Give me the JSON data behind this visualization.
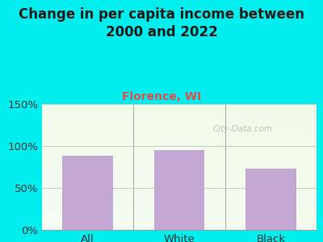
{
  "categories": [
    "All",
    "White",
    "Black"
  ],
  "values": [
    88,
    95,
    73
  ],
  "bar_color": "#C4A8D4",
  "title": "Change in per capita income between\n2000 and 2022",
  "subtitle": "Florence, WI",
  "subtitle_color": "#E05050",
  "title_color": "#1a1a1a",
  "background_color": "#00EEEE",
  "ylim": [
    0,
    150
  ],
  "yticks": [
    0,
    50,
    100,
    150
  ],
  "ytick_labels": [
    "0%",
    "50%",
    "100%",
    "150%"
  ],
  "grid_color": "#ccccbb",
  "watermark": "City-Data.com",
  "title_fontsize": 12,
  "subtitle_fontsize": 10,
  "tick_fontsize": 9.5,
  "bar_width": 0.55
}
